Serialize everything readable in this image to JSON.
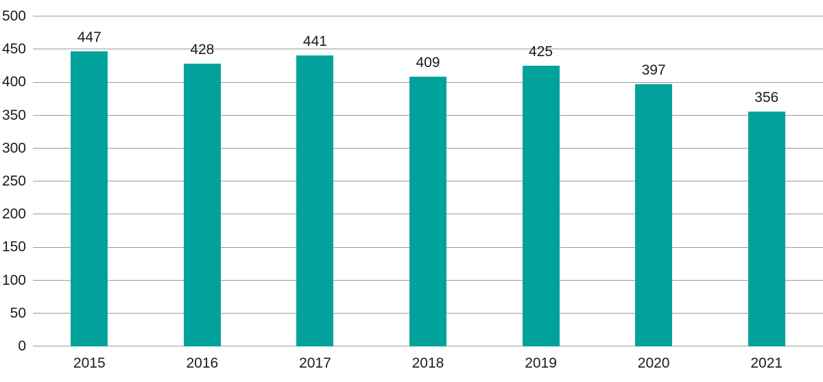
{
  "chart_data": {
    "type": "bar",
    "title": "",
    "xlabel": "",
    "ylabel": "",
    "categories": [
      "2015",
      "2016",
      "2017",
      "2018",
      "2019",
      "2020",
      "2021"
    ],
    "values": [
      447,
      428,
      441,
      409,
      425,
      397,
      356
    ],
    "value_labels": [
      "447",
      "428",
      "441",
      "409",
      "425",
      "397",
      "356"
    ],
    "ylim": [
      0,
      500
    ],
    "ytick_interval": 50,
    "yticks": [
      0,
      50,
      100,
      150,
      200,
      250,
      300,
      350,
      400,
      450,
      500
    ],
    "grid": true,
    "legend": "none",
    "colors": {
      "bar": "#00A29B",
      "gridline": "#9A9A9A",
      "text": "#1A1A1A",
      "background": "#FFFFFF"
    }
  }
}
